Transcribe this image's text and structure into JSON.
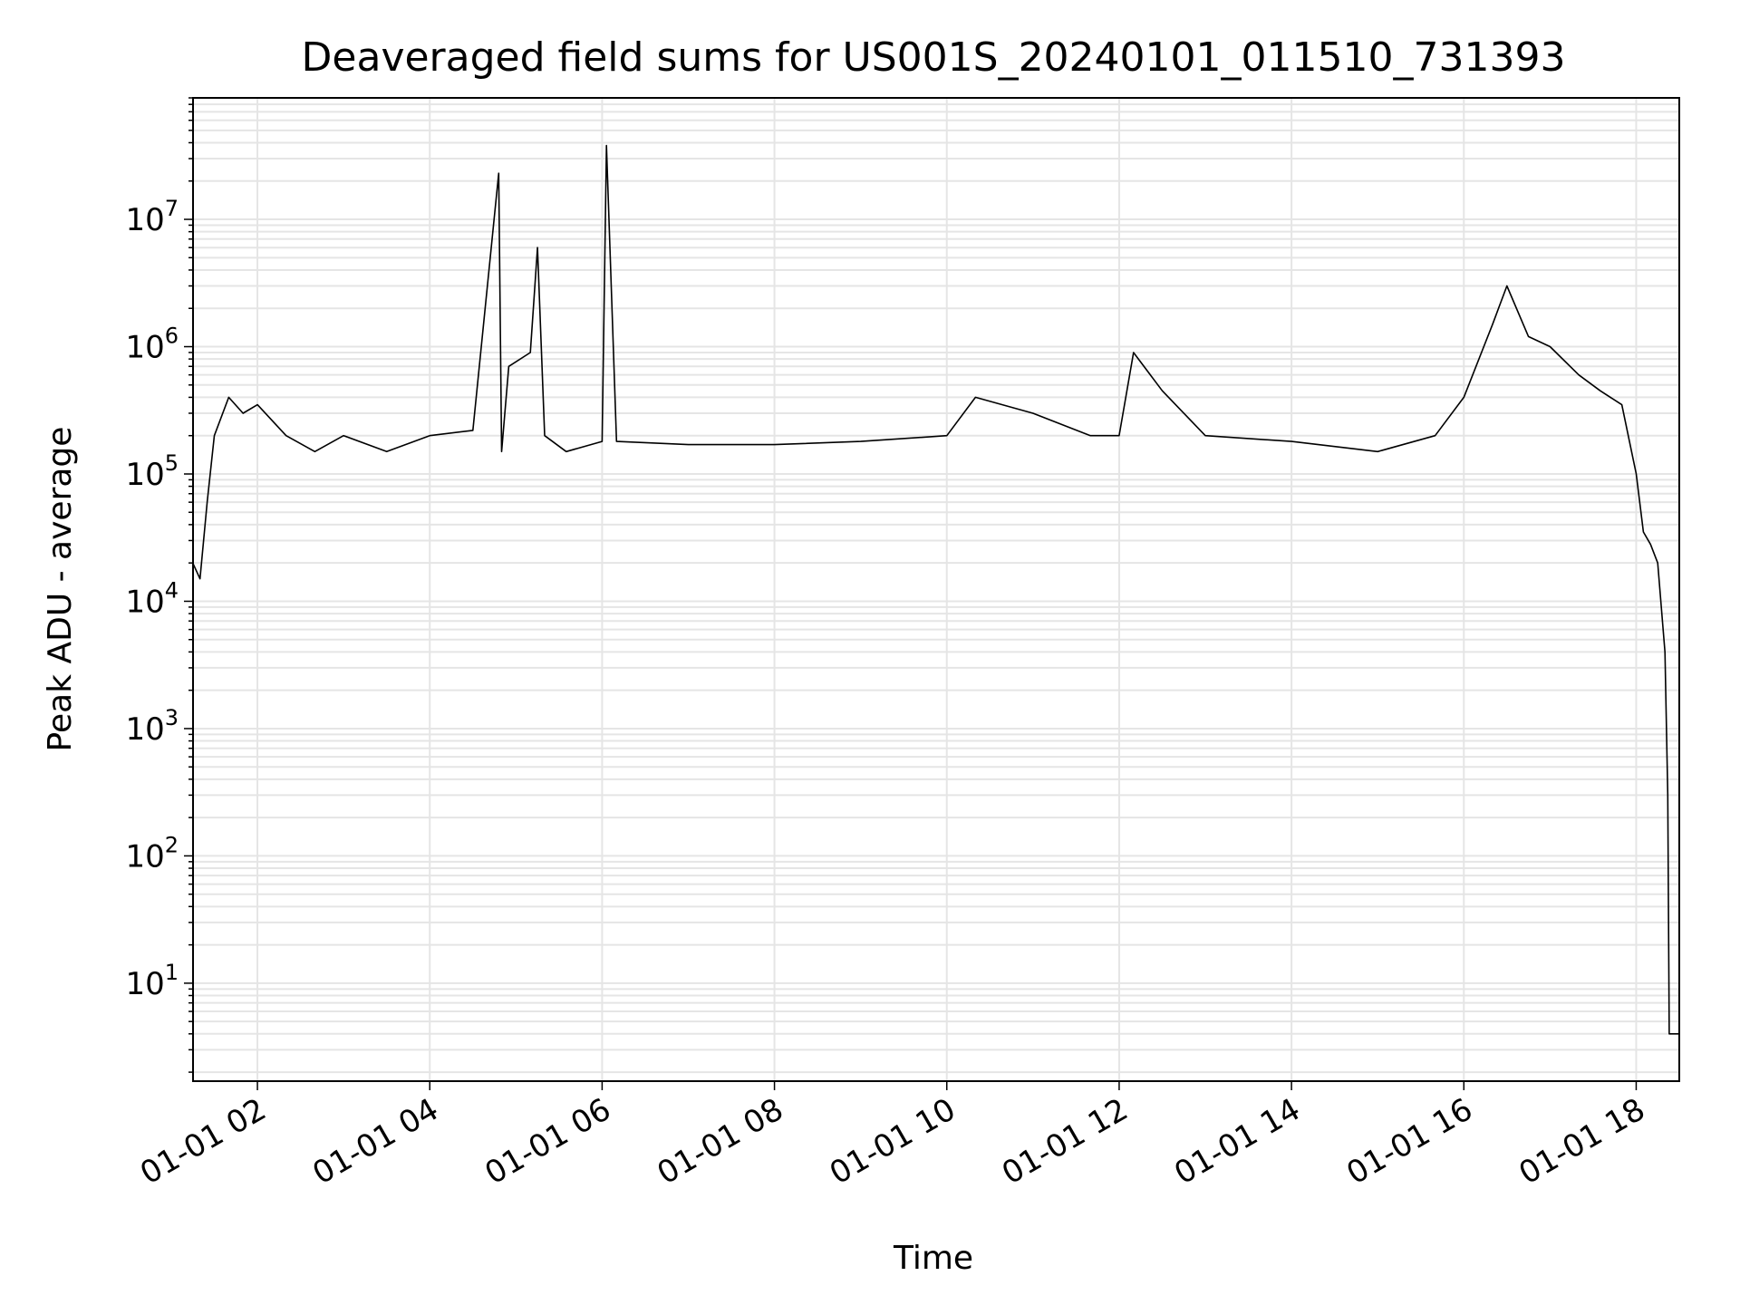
{
  "chart_data": {
    "type": "line",
    "title": "Deaveraged field sums for US001S_20240101_011510_731393",
    "xlabel": "Time",
    "ylabel": "Peak ADU - average",
    "x_start": "2024-01-01 01:15:10",
    "x_end": "2024-01-01 18:30",
    "x_ticks": [
      {
        "value": "2024-01-01 02:00",
        "label": "01-01 02"
      },
      {
        "value": "2024-01-01 04:00",
        "label": "01-01 04"
      },
      {
        "value": "2024-01-01 06:00",
        "label": "01-01 06"
      },
      {
        "value": "2024-01-01 08:00",
        "label": "01-01 08"
      },
      {
        "value": "2024-01-01 10:00",
        "label": "01-01 10"
      },
      {
        "value": "2024-01-01 12:00",
        "label": "01-01 12"
      },
      {
        "value": "2024-01-01 14:00",
        "label": "01-01 14"
      },
      {
        "value": "2024-01-01 16:00",
        "label": "01-01 16"
      },
      {
        "value": "2024-01-01 18:00",
        "label": "01-01 18"
      }
    ],
    "y_scale": "log",
    "ylim": [
      1.7,
      90000000
    ],
    "y_ticks": [
      {
        "base": "10",
        "exp": "1"
      },
      {
        "base": "10",
        "exp": "2"
      },
      {
        "base": "10",
        "exp": "3"
      },
      {
        "base": "10",
        "exp": "4"
      },
      {
        "base": "10",
        "exp": "5"
      },
      {
        "base": "10",
        "exp": "6"
      },
      {
        "base": "10",
        "exp": "7"
      }
    ],
    "grid": true,
    "line_color": "#000000",
    "grid_color": "#e5e5e5",
    "series": [
      {
        "x": [
          "2024-01-01 01:15",
          "2024-01-01 01:20",
          "2024-01-01 01:25",
          "2024-01-01 01:30",
          "2024-01-01 01:40",
          "2024-01-01 01:50",
          "2024-01-01 02:00",
          "2024-01-01 02:20",
          "2024-01-01 02:40",
          "2024-01-01 03:00",
          "2024-01-01 03:30",
          "2024-01-01 04:00",
          "2024-01-01 04:30",
          "2024-01-01 04:48",
          "2024-01-01 04:50",
          "2024-01-01 04:55",
          "2024-01-01 05:10",
          "2024-01-01 05:15",
          "2024-01-01 05:20",
          "2024-01-01 05:35",
          "2024-01-01 06:00",
          "2024-01-01 06:03",
          "2024-01-01 06:10",
          "2024-01-01 07:00",
          "2024-01-01 08:00",
          "2024-01-01 09:00",
          "2024-01-01 10:00",
          "2024-01-01 10:20",
          "2024-01-01 11:00",
          "2024-01-01 11:40",
          "2024-01-01 12:00",
          "2024-01-01 12:10",
          "2024-01-01 12:30",
          "2024-01-01 13:00",
          "2024-01-01 14:00",
          "2024-01-01 15:00",
          "2024-01-01 15:40",
          "2024-01-01 16:00",
          "2024-01-01 16:20",
          "2024-01-01 16:30",
          "2024-01-01 16:45",
          "2024-01-01 17:00",
          "2024-01-01 17:20",
          "2024-01-01 17:35",
          "2024-01-01 17:50",
          "2024-01-01 18:00",
          "2024-01-01 18:05",
          "2024-01-01 18:10",
          "2024-01-01 18:15",
          "2024-01-01 18:20",
          "2024-01-01 18:22",
          "2024-01-01 18:23",
          "2024-01-01 18:30"
        ],
        "y": [
          20000,
          15000,
          60000,
          200000,
          400000,
          300000,
          350000,
          200000,
          150000,
          200000,
          150000,
          200000,
          220000,
          23000000,
          150000,
          700000,
          900000,
          6000000,
          200000,
          150000,
          180000,
          38000000,
          180000,
          170000,
          170000,
          180000,
          200000,
          400000,
          300000,
          200000,
          200000,
          900000,
          450000,
          200000,
          180000,
          150000,
          200000,
          400000,
          1500000,
          3000000,
          1200000,
          1000000,
          600000,
          450000,
          350000,
          100000,
          35000,
          28000,
          20000,
          4000,
          300,
          4,
          4
        ]
      }
    ]
  }
}
